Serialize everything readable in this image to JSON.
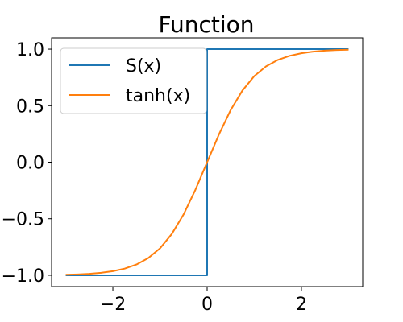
{
  "chart_data": {
    "type": "line",
    "title": "Function",
    "xlabel": "",
    "ylabel": "",
    "xlim": [
      -3.3,
      3.3
    ],
    "ylim": [
      -1.1,
      1.1
    ],
    "xticks": [
      -2,
      0,
      2
    ],
    "xtick_labels": [
      "−2",
      "0",
      "2"
    ],
    "yticks": [
      -1.0,
      -0.5,
      0.0,
      0.5,
      1.0
    ],
    "ytick_labels": [
      "−1.0",
      "−0.5",
      "0.0",
      "0.5",
      "1.0"
    ],
    "grid": false,
    "legend_position": "top-left",
    "series": [
      {
        "name": "S(x)",
        "color": "#1f77b4",
        "x": [
          -3,
          0,
          0,
          3
        ],
        "y": [
          -1,
          -1,
          1,
          1
        ]
      },
      {
        "name": "tanh(x)",
        "color": "#ff7f0e",
        "x": [
          -3,
          -2.75,
          -2.5,
          -2.25,
          -2,
          -1.75,
          -1.5,
          -1.25,
          -1,
          -0.75,
          -0.5,
          -0.25,
          0,
          0.25,
          0.5,
          0.75,
          1,
          1.25,
          1.5,
          1.75,
          2,
          2.25,
          2.5,
          2.75,
          3
        ],
        "y": [
          -0.995,
          -0.992,
          -0.987,
          -0.978,
          -0.964,
          -0.941,
          -0.905,
          -0.848,
          -0.762,
          -0.635,
          -0.462,
          -0.245,
          0,
          0.245,
          0.462,
          0.635,
          0.762,
          0.848,
          0.905,
          0.941,
          0.964,
          0.978,
          0.987,
          0.992,
          0.995
        ]
      }
    ]
  }
}
